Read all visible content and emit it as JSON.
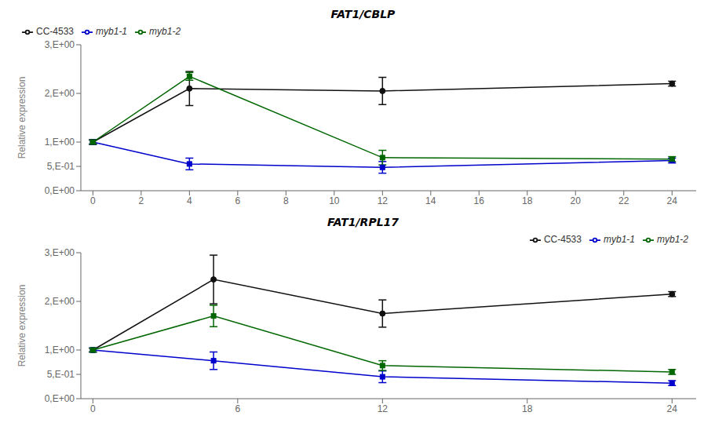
{
  "chart_data": [
    {
      "type": "line",
      "title": "FAT1/CBLP",
      "y_label": "Relative expression",
      "x": [
        0,
        4,
        12,
        24
      ],
      "series": [
        {
          "name": "CC-4533",
          "color": "#111111",
          "marker": "circle",
          "values": [
            1.0,
            2.1,
            2.05,
            2.2
          ],
          "yerr": [
            0.05,
            0.35,
            0.28,
            0.05
          ]
        },
        {
          "name": "myb1-1",
          "color": "#0000CC",
          "marker": "square",
          "values": [
            1.0,
            0.55,
            0.48,
            0.62
          ],
          "yerr": [
            0.04,
            0.12,
            0.12,
            0.05
          ]
        },
        {
          "name": "myb1-2",
          "color": "#006600",
          "marker": "square",
          "values": [
            1.0,
            2.35,
            0.68,
            0.65
          ],
          "yerr": [
            0.04,
            0.08,
            0.15,
            0.05
          ]
        }
      ],
      "xlim": [
        -0.5,
        25
      ],
      "ylim": [
        0,
        3.0
      ],
      "yticks": [
        {
          "value": 0,
          "label": "0,E+00"
        },
        {
          "value": 0.5,
          "label": "5,E-01"
        },
        {
          "value": 1.0,
          "label": "1,E+00"
        },
        {
          "value": 2.0,
          "label": "2,E+00"
        },
        {
          "value": 3.0,
          "label": "3,E+00"
        }
      ],
      "xticks": [
        0,
        2,
        4,
        6,
        8,
        10,
        12,
        14,
        16,
        18,
        20,
        22,
        24
      ],
      "grid": false,
      "legend": "upper left"
    },
    {
      "type": "line",
      "title": "FAT1/RPL17",
      "y_label": "Relative expression",
      "x": [
        0,
        5,
        12,
        24
      ],
      "series": [
        {
          "name": "CC-4533",
          "color": "#111111",
          "marker": "circle",
          "values": [
            1.0,
            2.45,
            1.75,
            2.15
          ],
          "yerr": [
            0.04,
            0.5,
            0.28,
            0.05
          ]
        },
        {
          "name": "myb1-1",
          "color": "#0000CC",
          "marker": "square",
          "values": [
            1.0,
            0.78,
            0.45,
            0.32
          ],
          "yerr": [
            0.04,
            0.18,
            0.12,
            0.05
          ]
        },
        {
          "name": "myb1-2",
          "color": "#006600",
          "marker": "square",
          "values": [
            1.0,
            1.7,
            0.68,
            0.55
          ],
          "yerr": [
            0.04,
            0.22,
            0.1,
            0.05
          ]
        }
      ],
      "xlim": [
        -0.5,
        25
      ],
      "ylim": [
        0,
        3.0
      ],
      "yticks": [
        {
          "value": 0,
          "label": "0,E+00"
        },
        {
          "value": 0.5,
          "label": "5,E-01"
        },
        {
          "value": 1.0,
          "label": "1,E+00"
        },
        {
          "value": 2.0,
          "label": "2,E+00"
        },
        {
          "value": 3.0,
          "label": "3,E+00"
        }
      ],
      "xticks": [
        0,
        6,
        12,
        18,
        24
      ],
      "grid": false,
      "legend": "upper right"
    }
  ]
}
